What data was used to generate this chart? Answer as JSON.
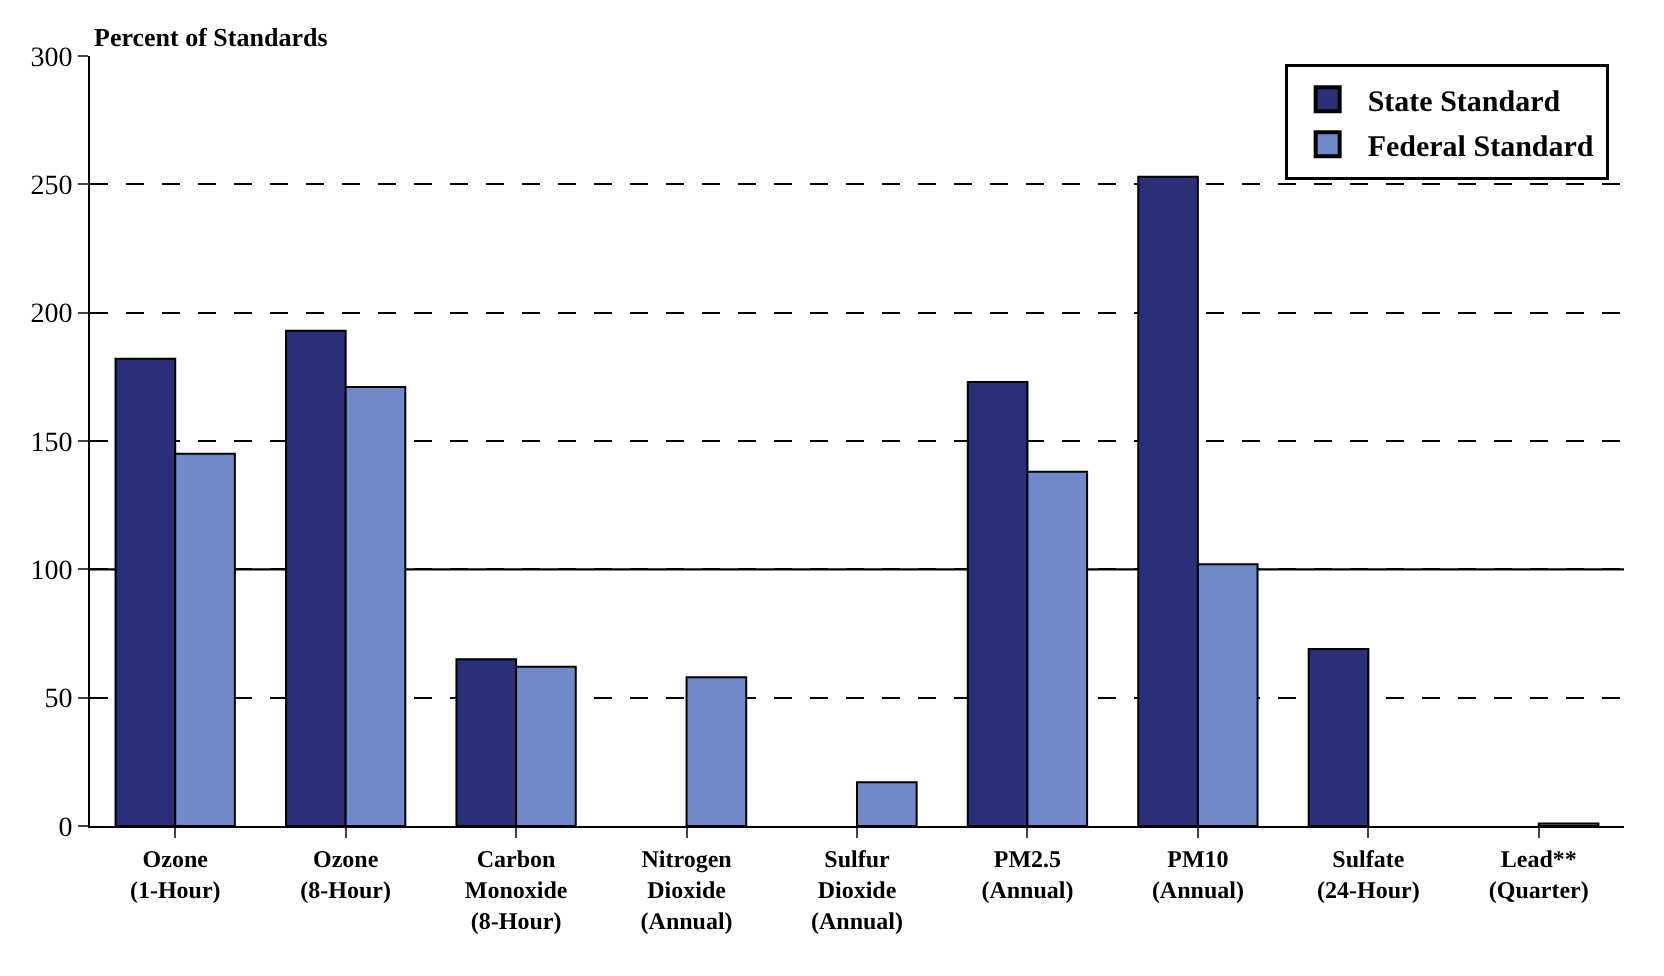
{
  "chart_data": {
    "type": "bar",
    "ylabel": "Percent of Standards",
    "categories": [
      "Ozone\n(1-Hour)",
      "Ozone\n(8-Hour)",
      "Carbon\nMonoxide\n(8-Hour)",
      "Nitrogen\nDioxide\n(Annual)",
      "Sulfur\nDioxide\n(Annual)",
      "PM2.5\n(Annual)",
      "PM10\n(Annual)",
      "Sulfate\n(24-Hour)",
      "Lead**\n(Quarter)"
    ],
    "series": [
      {
        "name": "State Standard",
        "color": "#2b2e78",
        "values": [
          182,
          193,
          65,
          null,
          null,
          173,
          253,
          69,
          null
        ]
      },
      {
        "name": "Federal Standard",
        "color": "#7089c9",
        "values": [
          145,
          171,
          62,
          58,
          17,
          138,
          102,
          null,
          1
        ]
      }
    ],
    "ylim": [
      0,
      300
    ],
    "yticks": [
      0,
      50,
      100,
      150,
      200,
      250,
      300
    ],
    "ref_lines": [
      {
        "axis": "y",
        "value": 100,
        "color": "#000000",
        "line_style": "solid"
      }
    ],
    "grid": "y",
    "legend": "top right"
  }
}
